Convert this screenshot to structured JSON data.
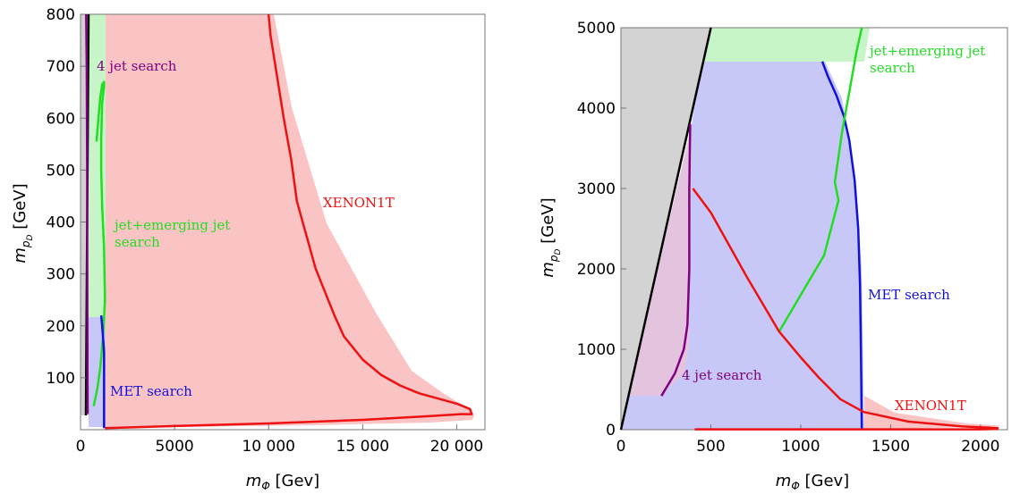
{
  "chart_data": [
    {
      "type": "area",
      "xlabel": "m_Φ [Gev]",
      "ylabel": "m_{p_D} [GeV]",
      "xlim": [
        0,
        21500
      ],
      "ylim": [
        0,
        800
      ],
      "xticks": [
        "0",
        "5000",
        "10 000",
        "15 000",
        "20 000"
      ],
      "yticks": [
        "100",
        "200",
        "300",
        "400",
        "500",
        "600",
        "700",
        "800"
      ],
      "xtick_values": [
        0,
        5000,
        10000,
        15000,
        20000
      ],
      "ytick_values": [
        100,
        200,
        300,
        400,
        500,
        600,
        700,
        800
      ],
      "grid": false,
      "annotations": [
        {
          "text": "4 jet search",
          "color": "#800080"
        },
        {
          "text": "jet+emerging jet",
          "color": "#22dd22"
        },
        {
          "text": "search",
          "color": "#22dd22"
        },
        {
          "text": "XENON1T",
          "color": "#ee1111"
        },
        {
          "text": "MET search",
          "color": "#1111dd"
        }
      ],
      "series": [
        {
          "color": "#ee1111",
          "fill": "#fbc4c4",
          "x": [
            1300,
            5000,
            10000,
            15000,
            18500,
            20200,
            20800,
            20700,
            20000,
            19000,
            18000,
            17000,
            16000,
            15000,
            14000,
            13500,
            12500,
            11500,
            11200,
            10800,
            10100,
            10000
          ],
          "y": [
            3,
            7,
            12,
            19,
            26,
            30,
            30,
            40,
            50,
            60,
            70,
            85,
            105,
            135,
            180,
            220,
            310,
            440,
            520,
            600,
            760,
            800
          ]
        },
        {
          "color": "#800080",
          "x": [
            380,
            370,
            360,
            350,
            330,
            300
          ],
          "y": [
            30,
            100,
            300,
            500,
            700,
            800
          ]
        },
        {
          "color": "#22dd22",
          "x": [
            700,
            900,
            1050,
            1200,
            1300,
            1250,
            1150,
            1100,
            1100,
            1150,
            1250,
            1250,
            1150,
            1050,
            950,
            850
          ],
          "y": [
            45,
            80,
            120,
            180,
            250,
            350,
            430,
            500,
            560,
            630,
            660,
            670,
            665,
            640,
            600,
            555
          ]
        },
        {
          "color": "#1111dd",
          "x": [
            1100,
            1150,
            1250,
            1250
          ],
          "y": [
            220,
            200,
            150,
            3
          ]
        }
      ]
    },
    {
      "type": "area",
      "xlabel": "m_Φ [Gev]",
      "ylabel": "m_{p_D} [GeV]",
      "xlim": [
        0,
        2150
      ],
      "ylim": [
        0,
        5000
      ],
      "xticks": [
        "0",
        "500",
        "1000",
        "1500",
        "2000"
      ],
      "yticks": [
        "0",
        "1000",
        "2000",
        "3000",
        "4000",
        "5000"
      ],
      "xtick_values": [
        0,
        500,
        1000,
        1500,
        2000
      ],
      "ytick_values": [
        0,
        1000,
        2000,
        3000,
        4000,
        5000
      ],
      "grid": false,
      "annotations": [
        {
          "text": "jet+emerging jet",
          "color": "#22dd22"
        },
        {
          "text": "search",
          "color": "#22dd22"
        },
        {
          "text": "MET search",
          "color": "#1111dd"
        },
        {
          "text": "4 jet search",
          "color": "#800080"
        },
        {
          "text": "XENON1T",
          "color": "#ee1111"
        }
      ],
      "series": [
        {
          "color": "#000000",
          "x": [
            0,
            500
          ],
          "y": [
            0,
            5000
          ]
        },
        {
          "color": "#800080",
          "x": [
            225,
            260,
            300,
            350,
            370,
            380,
            380,
            385
          ],
          "y": [
            420,
            550,
            700,
            1000,
            1300,
            2000,
            3000,
            3800
          ]
        },
        {
          "color": "#1111dd",
          "x": [
            1120,
            1150,
            1200,
            1240,
            1270,
            1300,
            1320,
            1330,
            1335,
            1340
          ],
          "y": [
            4580,
            4400,
            4150,
            3900,
            3600,
            3100,
            2500,
            1800,
            1000,
            0
          ]
        },
        {
          "color": "#22dd22",
          "x": [
            880,
            1130,
            1210,
            1190,
            1230,
            1270,
            1310,
            1340
          ],
          "y": [
            1220,
            2170,
            2850,
            3080,
            3700,
            4200,
            4700,
            5000
          ]
        },
        {
          "color": "#ee1111",
          "x": [
            400,
            500,
            700,
            880,
            1000,
            1100,
            1220,
            1350,
            1600,
            1900,
            2100
          ],
          "y": [
            3000,
            2700,
            1900,
            1220,
            900,
            650,
            380,
            220,
            100,
            40,
            20
          ]
        },
        {
          "color": "#ee1111",
          "x": [
            410,
            1000,
            1500,
            2000,
            2100
          ],
          "y": [
            5,
            5,
            5,
            5,
            10
          ]
        }
      ]
    }
  ]
}
